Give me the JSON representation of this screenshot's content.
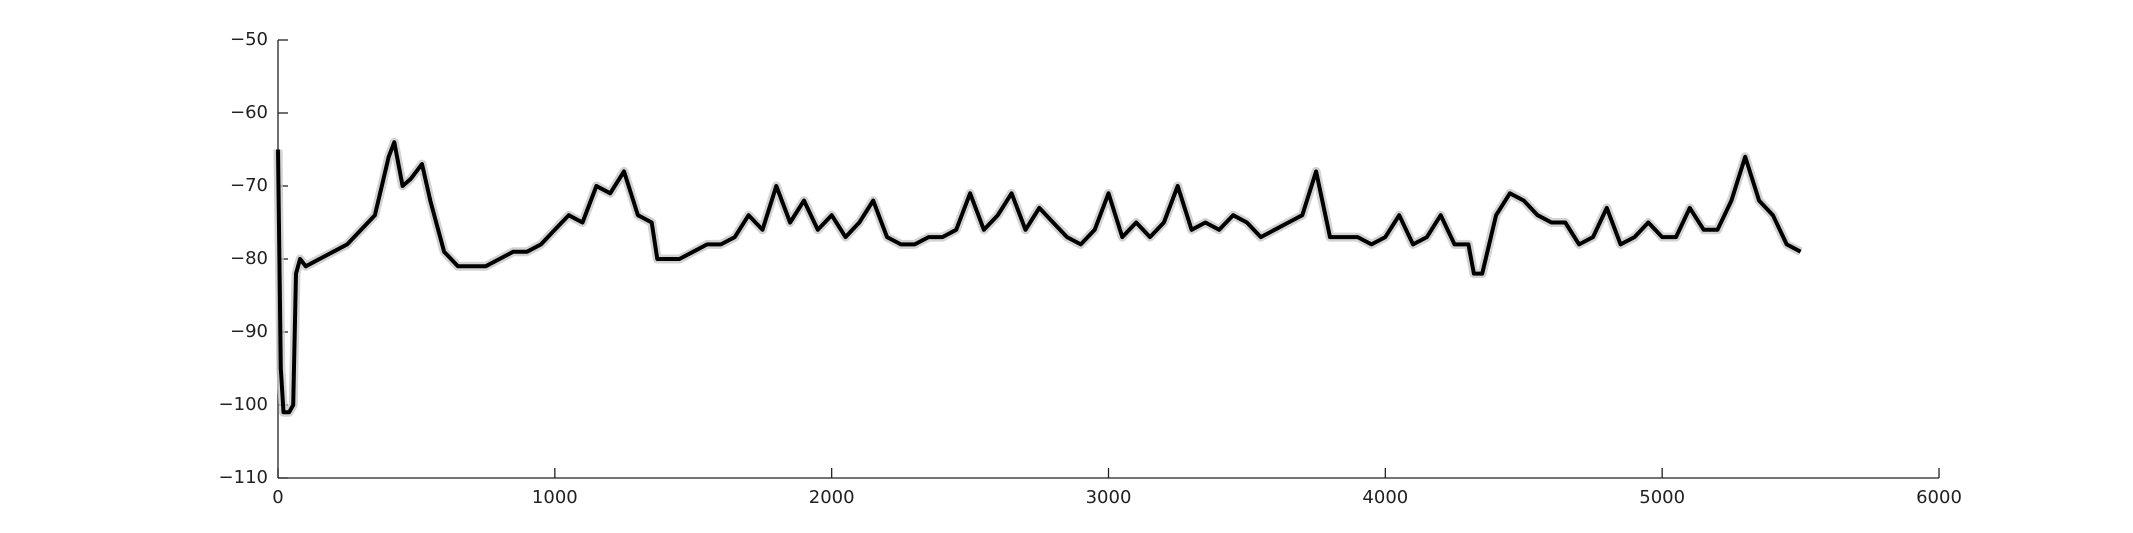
{
  "chart_data": {
    "type": "line",
    "x": [
      0,
      10,
      20,
      40,
      55,
      65,
      80,
      100,
      150,
      200,
      250,
      300,
      350,
      400,
      420,
      450,
      480,
      520,
      550,
      600,
      650,
      700,
      750,
      800,
      850,
      900,
      950,
      1000,
      1050,
      1100,
      1150,
      1200,
      1250,
      1300,
      1350,
      1370,
      1400,
      1450,
      1500,
      1550,
      1600,
      1650,
      1700,
      1750,
      1800,
      1850,
      1900,
      1950,
      2000,
      2050,
      2100,
      2150,
      2200,
      2250,
      2300,
      2350,
      2400,
      2450,
      2500,
      2550,
      2600,
      2650,
      2700,
      2750,
      2800,
      2850,
      2900,
      2950,
      3000,
      3050,
      3100,
      3150,
      3200,
      3250,
      3300,
      3350,
      3400,
      3450,
      3500,
      3550,
      3600,
      3650,
      3700,
      3750,
      3800,
      3850,
      3900,
      3950,
      4000,
      4050,
      4100,
      4150,
      4200,
      4250,
      4300,
      4320,
      4350,
      4400,
      4450,
      4500,
      4550,
      4600,
      4650,
      4700,
      4750,
      4800,
      4850,
      4900,
      4950,
      5000,
      5050,
      5100,
      5150,
      5200,
      5250,
      5300,
      5350,
      5400,
      5450,
      5500
    ],
    "series": [
      {
        "color": "#000000",
        "values": [
          -65,
          -95,
          -101,
          -101,
          -100,
          -82,
          -80,
          -81,
          -80,
          -79,
          -78,
          -76,
          -74,
          -66,
          -64,
          -70,
          -69,
          -67,
          -72,
          -79,
          -81,
          -81,
          -81,
          -80,
          -79,
          -79,
          -78,
          -76,
          -74,
          -75,
          -70,
          -71,
          -68,
          -74,
          -75,
          -80,
          -80,
          -80,
          -79,
          -78,
          -78,
          -77,
          -74,
          -76,
          -70,
          -75,
          -72,
          -76,
          -74,
          -77,
          -75,
          -72,
          -77,
          -78,
          -78,
          -77,
          -77,
          -76,
          -71,
          -76,
          -74,
          -71,
          -76,
          -73,
          -75,
          -77,
          -78,
          -76,
          -71,
          -77,
          -75,
          -77,
          -75,
          -70,
          -76,
          -75,
          -76,
          -74,
          -75,
          -77,
          -76,
          -75,
          -74,
          -68,
          -77,
          -77,
          -77,
          -78,
          -77,
          -74,
          -78,
          -77,
          -74,
          -78,
          -78,
          -82,
          -82,
          -74,
          -71,
          -72,
          -74,
          -75,
          -75,
          -78,
          -77,
          -73,
          -78,
          -77,
          -75,
          -77,
          -77,
          -73,
          -76,
          -76,
          -72,
          -66,
          -72,
          -74,
          -78,
          -79
        ]
      }
    ],
    "xlim": [
      0,
      6000
    ],
    "xticks": [
      0,
      1000,
      2000,
      3000,
      4000,
      5000,
      6000
    ],
    "ylim": [
      -110,
      -50
    ],
    "yticks": [
      {
        "value": -110,
        "label": "−110"
      },
      {
        "value": -100,
        "label": "−100"
      },
      {
        "value": -90,
        "label": "−90"
      },
      {
        "value": -80,
        "label": "−80"
      },
      {
        "value": -70,
        "label": "−70"
      },
      {
        "value": -60,
        "label": "−60"
      },
      {
        "value": -50,
        "label": "−50"
      }
    ],
    "grid": false
  }
}
